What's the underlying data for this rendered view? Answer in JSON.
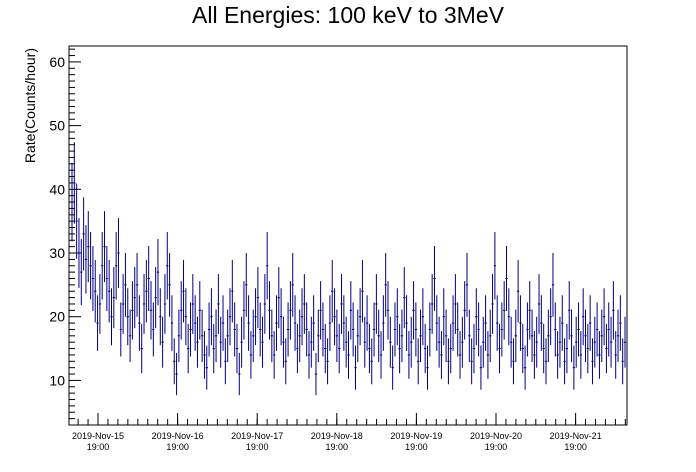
{
  "chart_data": {
    "type": "scatter",
    "title": "All Energies:  100 keV to 3MeV",
    "ylabel": "Rate(Counts/hour)",
    "xlabel": "",
    "ylim": [
      3,
      62.5
    ],
    "y_ticks": [
      10,
      20,
      30,
      40,
      50,
      60
    ],
    "x_date_ticks": [
      {
        "date": "2019-Nov-15",
        "time": "19:00"
      },
      {
        "date": "2019-Nov-16",
        "time": "19:00"
      },
      {
        "date": "2019-Nov-17",
        "time": "19:00"
      },
      {
        "date": "2019-Nov-18",
        "time": "19:00"
      },
      {
        "date": "2019-Nov-19",
        "time": "19:00"
      },
      {
        "date": "2019-Nov-20",
        "time": "19:00"
      },
      {
        "date": "2019-Nov-21",
        "time": "19:00"
      }
    ],
    "grid": false,
    "marker_color": "#000080",
    "error_bars": "sqrt",
    "series": [
      {
        "values": [
          38,
          41,
          35,
          30,
          27,
          33,
          29,
          31,
          28,
          26,
          24,
          19,
          22,
          28,
          31,
          26,
          24,
          20,
          23,
          28,
          30,
          18,
          22,
          25,
          20,
          17,
          21,
          23,
          25,
          19,
          15,
          22,
          24,
          26,
          21,
          18,
          23,
          27,
          20,
          16,
          22,
          28,
          25,
          19,
          13,
          11,
          17,
          21,
          24,
          20,
          15,
          18,
          22,
          19,
          16,
          21,
          17,
          14,
          12,
          18,
          20,
          15,
          17,
          22,
          16,
          19,
          13,
          17,
          20,
          24,
          18,
          15,
          11,
          16,
          21,
          25,
          19,
          14,
          17,
          20,
          23,
          18,
          16,
          22,
          28,
          21,
          17,
          14,
          19,
          23,
          20,
          16,
          13,
          18,
          21,
          25,
          19,
          15,
          17,
          20,
          22,
          18,
          14,
          16,
          19,
          11,
          17,
          21,
          18,
          15,
          13,
          19,
          24,
          20,
          17,
          15,
          22,
          19,
          16,
          14,
          21,
          18,
          12,
          17,
          20,
          24,
          16,
          19,
          15,
          13,
          18,
          22,
          17,
          14,
          19,
          25,
          21,
          16,
          12,
          18,
          20,
          15,
          17,
          23,
          19,
          14,
          16,
          21,
          18,
          13,
          17,
          20,
          15,
          12,
          18,
          22,
          26,
          19,
          16,
          14,
          20,
          17,
          13,
          15,
          19,
          22,
          18,
          14,
          16,
          21,
          25,
          17,
          13,
          15,
          20,
          18,
          12,
          16,
          19,
          14,
          17,
          22,
          28,
          19,
          15,
          18,
          21,
          26,
          20,
          16,
          13,
          17,
          24,
          19,
          15,
          12,
          18,
          21,
          17,
          14,
          16,
          22,
          19,
          15,
          13,
          17,
          20,
          25,
          18,
          14,
          16,
          19,
          13,
          15,
          21,
          17,
          12,
          16,
          18,
          14,
          20,
          17,
          15,
          19,
          13,
          16,
          18,
          14,
          17,
          20,
          15,
          18,
          16,
          21,
          14,
          17,
          19,
          13,
          16
        ]
      }
    ]
  }
}
